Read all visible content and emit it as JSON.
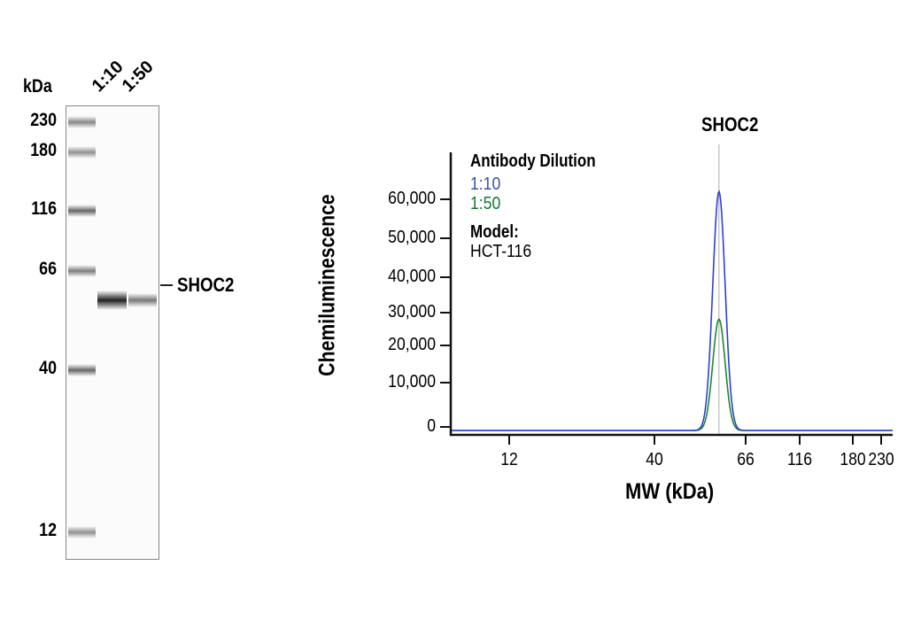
{
  "chart_data": [
    {
      "type": "blot",
      "unit_label": "kDa",
      "lane_labels": [
        "1:10",
        "1:50"
      ],
      "markers": [
        230,
        180,
        116,
        66,
        40,
        12
      ],
      "band_label": "SHOC2",
      "band_mw": 57,
      "band_intensity": [
        1.0,
        0.6
      ]
    },
    {
      "type": "line",
      "title": "SHOC2",
      "xlabel": "MW (kDa)",
      "ylabel": "Chemiluminescence",
      "x_ticks": [
        12,
        40,
        66,
        116,
        180,
        230
      ],
      "y_ticks": [
        0,
        10000,
        20000,
        30000,
        40000,
        50000,
        60000
      ],
      "y_tick_labels": [
        "0",
        "10,000",
        "20,000",
        "30,000",
        "40,000",
        "50,000",
        "60,000"
      ],
      "x_scale": "log",
      "legend": {
        "title": "Antibody Dilution",
        "model_label": "Model:",
        "model_value": "HCT-116",
        "placement": "top-left"
      },
      "series": [
        {
          "name": "1:10",
          "color": "#2e3fd6",
          "label_color": "#3b4fa8",
          "peak_x": 57,
          "peak_y": 62000
        },
        {
          "name": "1:50",
          "color": "#1a8a2e",
          "label_color": "#0f7a30",
          "peak_x": 57,
          "peak_y": 28000
        }
      ],
      "reference_line_x": 57
    }
  ]
}
